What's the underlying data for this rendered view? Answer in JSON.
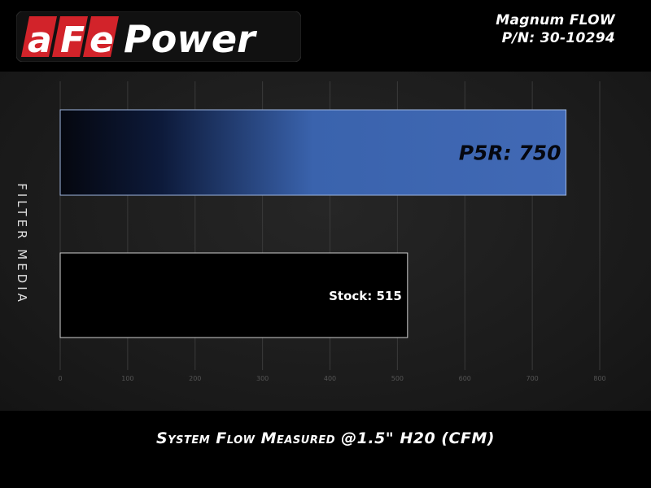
{
  "header": {
    "brand": "aFePower",
    "product": "Magnum FLOW",
    "part_number": "P/N: 30-10294"
  },
  "colors": {
    "accent_blue": "#3f69b6",
    "logo_red": "#d2232a",
    "background": "#000000"
  },
  "chart_data": {
    "type": "bar",
    "orientation": "horizontal",
    "categories": [
      "P5R",
      "Stock"
    ],
    "values": [
      750,
      515
    ],
    "data_labels": [
      "P5R: 750",
      "Stock: 515"
    ],
    "xlabel": "System Flow Measured @1.5\" H20 (CFM)",
    "ylabel": "FILTER MEDIA",
    "xlim": [
      0,
      800
    ],
    "xticks": [
      0,
      100,
      200,
      300,
      400,
      500,
      600,
      700,
      800
    ],
    "grid": true,
    "bar_styles": [
      "blue-gradient",
      "black-outlined"
    ]
  }
}
